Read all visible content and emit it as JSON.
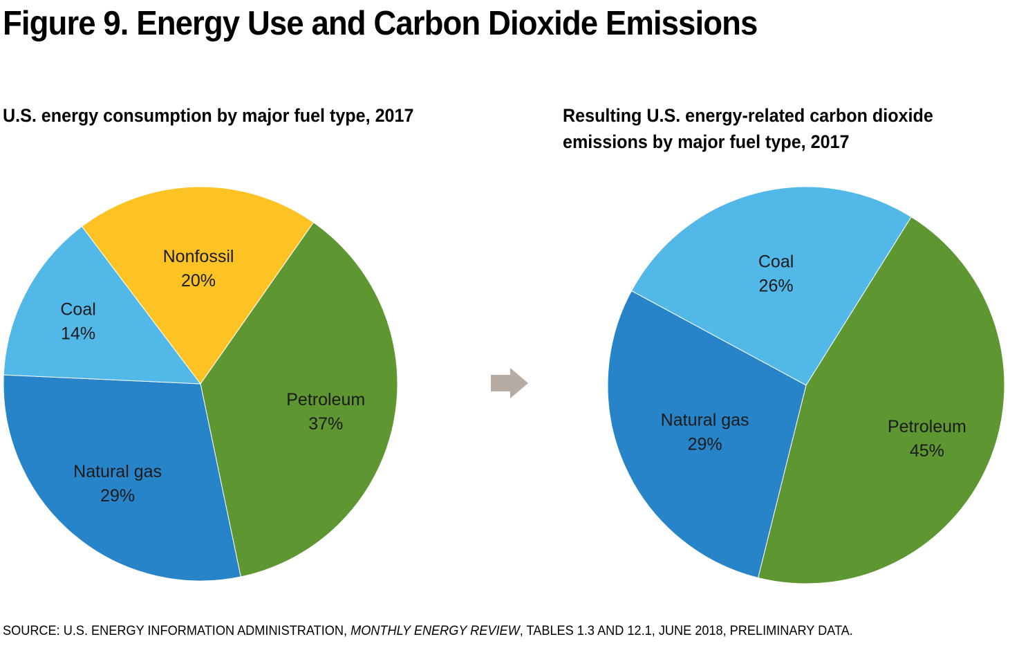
{
  "title": "Figure 9. Energy Use and Carbon Dioxide Emissions",
  "source": {
    "prefix": "SOURCE: U.S. ENERGY INFORMATION ADMINISTRATION, ",
    "publication": "MONTHLY ENERGY REVIEW",
    "suffix": ", TABLES 1.3 AND 12.1, JUNE 2018, PRELIMINARY DATA."
  },
  "colors": {
    "petroleum": "#5e9732",
    "natural_gas": "#2784c8",
    "coal": "#52b8e8",
    "nonfossil": "#fdc325",
    "arrow": "#b6aca4"
  },
  "arrow_icon": "right-arrow-icon",
  "chart_data": [
    {
      "type": "pie",
      "title": "U.S. energy consumption by major fuel type, 2017",
      "unit": "%",
      "slices": [
        {
          "label": "Petroleum",
          "value": 37,
          "value_label": "37%",
          "color": "#5e9732"
        },
        {
          "label": "Natural gas",
          "value": 29,
          "value_label": "29%",
          "color": "#2784c8"
        },
        {
          "label": "Coal",
          "value": 14,
          "value_label": "14%",
          "color": "#52b8e8"
        },
        {
          "label": "Nonfossil",
          "value": 20,
          "value_label": "20%",
          "color": "#fdc325"
        }
      ]
    },
    {
      "type": "pie",
      "title_lines": [
        "Resulting U.S. energy-related carbon dioxide",
        "emissions by major fuel type, 2017"
      ],
      "unit": "%",
      "slices": [
        {
          "label": "Petroleum",
          "value": 45,
          "value_label": "45%",
          "color": "#5e9732"
        },
        {
          "label": "Natural gas",
          "value": 29,
          "value_label": "29%",
          "color": "#2784c8"
        },
        {
          "label": "Coal",
          "value": 26,
          "value_label": "26%",
          "color": "#52b8e8"
        }
      ]
    }
  ]
}
